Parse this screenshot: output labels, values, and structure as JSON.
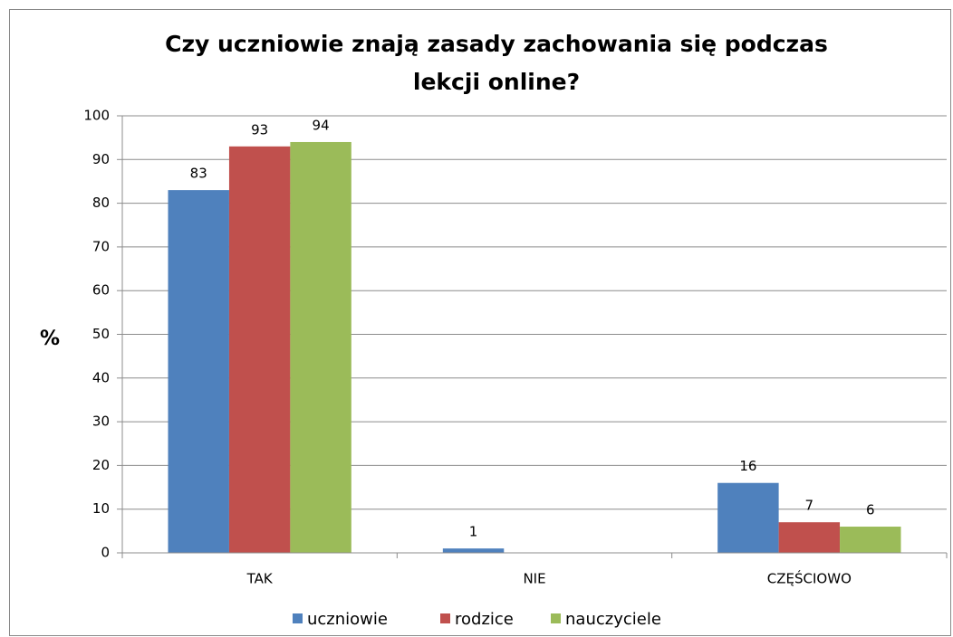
{
  "chart_data": {
    "type": "bar",
    "title": "Czy uczniowie znają zasady zachowania się podczas lekcji online?",
    "y_label": "%",
    "categories": [
      "TAK",
      "NIE",
      "CZĘŚCIOWO"
    ],
    "series": [
      {
        "name": "uczniowie",
        "color": "#4f81bd",
        "values": [
          83,
          1,
          16
        ]
      },
      {
        "name": "rodzice",
        "color": "#c0504d",
        "values": [
          93,
          0,
          7
        ]
      },
      {
        "name": "nauczyciele",
        "color": "#9bbb59",
        "values": [
          94,
          0,
          6
        ]
      }
    ],
    "ylim": [
      0,
      100
    ],
    "yticks": [
      0,
      10,
      20,
      30,
      40,
      50,
      60,
      70,
      80,
      90,
      100
    ],
    "grid": true,
    "legend": "bottom"
  }
}
